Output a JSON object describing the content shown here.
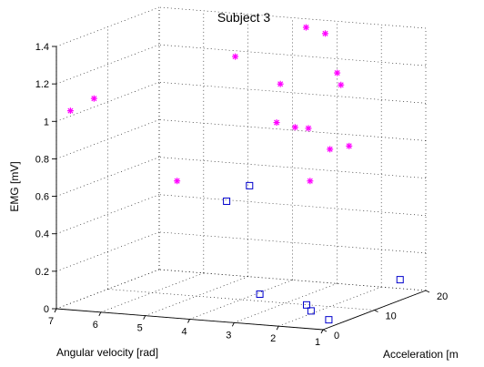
{
  "chart_data": {
    "type": "scatter",
    "title": "Subject 3",
    "xlabel": "Angular velocity [rad]",
    "ylabel": "Acceleration [m",
    "zlabel": "EMG [mV]",
    "xlim": [
      1,
      7
    ],
    "ylim": [
      0,
      20
    ],
    "zlim": [
      0,
      1.4
    ],
    "xticks": [
      "1",
      "2",
      "3",
      "4",
      "5",
      "6",
      "7"
    ],
    "yticks": [
      "0",
      "10",
      "20"
    ],
    "zticks": [
      "0",
      "0.2",
      "0.4",
      "0.6",
      "0.8",
      "1",
      "1.2",
      "1.4"
    ],
    "grid": true,
    "series": [
      {
        "marker": "asterisk",
        "color": "#ff00ff",
        "points": [
          {
            "x": 6.8,
            "y": 1,
            "z": 1.05
          },
          {
            "x": 6.5,
            "y": 3,
            "z": 1.1
          },
          {
            "x": 4.4,
            "y": 1,
            "z": 0.72
          },
          {
            "x": 3.9,
            "y": 8,
            "z": 1.32
          },
          {
            "x": 3.0,
            "y": 9,
            "z": 1.18
          },
          {
            "x": 3.0,
            "y": 14,
            "z": 1.43
          },
          {
            "x": 2.8,
            "y": 16,
            "z": 1.38
          },
          {
            "x": 2.3,
            "y": 14,
            "z": 1.2
          },
          {
            "x": 2.1,
            "y": 13,
            "z": 1.15
          },
          {
            "x": 3.2,
            "y": 10,
            "z": 0.96
          },
          {
            "x": 2.9,
            "y": 11,
            "z": 0.93
          },
          {
            "x": 2.6,
            "y": 11,
            "z": 0.93
          },
          {
            "x": 2.0,
            "y": 10,
            "z": 0.84
          },
          {
            "x": 1.8,
            "y": 12,
            "z": 0.84
          },
          {
            "x": 2.1,
            "y": 7,
            "z": 0.7
          }
        ]
      },
      {
        "marker": "square",
        "color": "#0000cc",
        "points": [
          {
            "x": 3.4,
            "y": 2,
            "z": 0.62
          },
          {
            "x": 3.0,
            "y": 3,
            "z": 0.7
          },
          {
            "x": 3.0,
            "y": 5,
            "z": 0.1
          },
          {
            "x": 1.6,
            "y": 2,
            "z": 0.1
          },
          {
            "x": 1.5,
            "y": 2,
            "z": 0.07
          },
          {
            "x": 1.1,
            "y": 2,
            "z": 0.03
          },
          {
            "x": 1.0,
            "y": 15,
            "z": 0.11
          }
        ]
      }
    ]
  }
}
